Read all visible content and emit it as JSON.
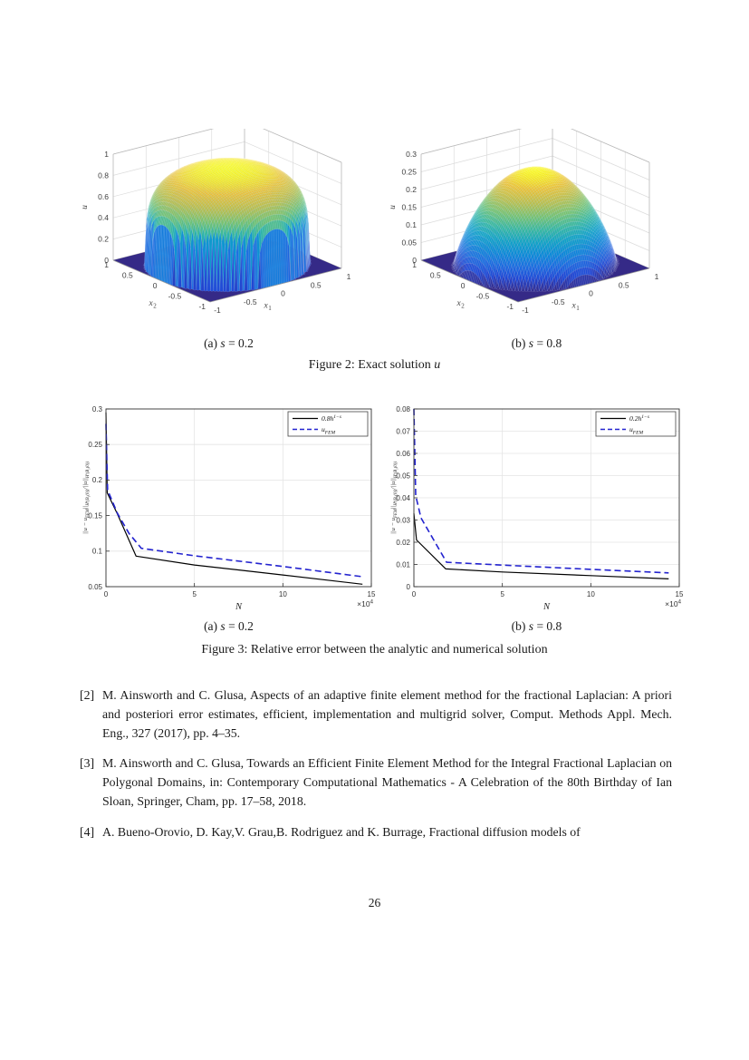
{
  "page": {
    "number": "26"
  },
  "figure2": {
    "caption_prefix": "Figure 2: Exact solution ",
    "caption_math": "u",
    "sub_a": {
      "pre": "(a) ",
      "math": "s",
      "post": " = 0.2"
    },
    "sub_b": {
      "pre": "(b) ",
      "math": "s",
      "post": " = 0.8"
    }
  },
  "figure3": {
    "caption": "Figure 3: Relative error between the analytic and numerical solution",
    "sub_a": {
      "pre": "(a) ",
      "math": "s",
      "post": " = 0.2"
    },
    "sub_b": {
      "pre": "(b) ",
      "math": "s",
      "post": " = 0.8"
    }
  },
  "references": [
    {
      "num": "[2]",
      "text": "M. Ainsworth and C. Glusa, Aspects of an adaptive finite element method for the fractional Laplacian: A priori and posteriori error estimates, efficient, implementation and multigrid solver, Comput. Methods Appl. Mech. Eng., 327 (2017), pp. 4–35."
    },
    {
      "num": "[3]",
      "text": "M. Ainsworth and C. Glusa, Towards an Efficient Finite Element Method for the Integral Fractional Laplacian on Polygonal Domains, in: Contemporary Computational Mathematics - A Celebration of the 80th Birthday of Ian Sloan, Springer, Cham, pp. 17–58, 2018."
    },
    {
      "num": "[4]",
      "text": "A. Bueno-Orovio, D. Kay,V. Grau,B. Rodriguez and K. Burrage, Fractional diffusion models of"
    }
  ],
  "chart_data": [
    {
      "id": "fig2a",
      "type": "surface3d",
      "description": "Exact solution u for s = 0.2: dome u = peak*(1-|x|^2)^s on unit disk, 0 outside",
      "s": 0.2,
      "peak": 0.93,
      "xlabel": "x_{1}",
      "ylabel": "x_{2}",
      "zlabel": "u",
      "xlim": [
        -1,
        1
      ],
      "ylim": [
        -1,
        1
      ],
      "zlim": [
        0,
        1
      ],
      "xticks": [
        -1,
        -0.5,
        0,
        0.5,
        1
      ],
      "yticks": [
        -1,
        -0.5,
        0,
        0.5,
        1
      ],
      "zticks": [
        0,
        0.2,
        0.4,
        0.6,
        0.8,
        1
      ],
      "colormap": "parula",
      "base_color": "#352a87",
      "grid": true
    },
    {
      "id": "fig2b",
      "type": "surface3d",
      "description": "Exact solution u for s = 0.8: smooth dome u = peak*(1-|x|^2)^s on unit disk, 0 outside",
      "s": 0.8,
      "peak": 0.27,
      "xlabel": "x_{1}",
      "ylabel": "x_{2}",
      "zlabel": "u",
      "xlim": [
        -1,
        1
      ],
      "ylim": [
        -1,
        1
      ],
      "zlim": [
        0,
        0.3
      ],
      "xticks": [
        -1,
        -0.5,
        0,
        0.5,
        1
      ],
      "yticks": [
        -1,
        -0.5,
        0,
        0.5,
        1
      ],
      "zticks": [
        0,
        0.05,
        0.1,
        0.15,
        0.2,
        0.25,
        0.3
      ],
      "colormap": "parula",
      "base_color": "#352a87",
      "grid": true
    },
    {
      "id": "fig3a",
      "type": "line",
      "xlabel": "N",
      "x_scale_label": "×10^{4}",
      "ylabel": "||u − u_{FEM}||_{H^s(B_1(0))}/||u||_{H^s(B_1(0))}",
      "xlim": [
        0,
        15
      ],
      "ylim": [
        0.05,
        0.3
      ],
      "xticks": [
        0,
        5,
        10,
        15
      ],
      "yticks": [
        0.05,
        0.1,
        0.15,
        0.2,
        0.25,
        0.3
      ],
      "grid": true,
      "legend_position": "northeast",
      "series": [
        {
          "label": "0.8h^{1−s}",
          "color": "#000000",
          "style": "solid",
          "points": [
            [
              0,
              0.295
            ],
            [
              0.07,
              0.182
            ],
            [
              0.65,
              0.152
            ],
            [
              1.7,
              0.093
            ],
            [
              5,
              0.0805
            ],
            [
              10,
              0.0665
            ],
            [
              14.5,
              0.0535
            ]
          ]
        },
        {
          "label": "u_{FEM}",
          "color": "#2323cf",
          "style": "dashed",
          "points": [
            [
              0,
              0.279
            ],
            [
              0.09,
              0.186
            ],
            [
              0.65,
              0.153
            ],
            [
              1.3,
              0.125
            ],
            [
              2,
              0.104
            ],
            [
              5,
              0.0935
            ],
            [
              10,
              0.0785
            ],
            [
              14.5,
              0.064
            ]
          ]
        }
      ]
    },
    {
      "id": "fig3b",
      "type": "line",
      "xlabel": "N",
      "x_scale_label": "×10^{4}",
      "ylabel": "||u − u_{FEM}||_{H^s(B_1(0))}/||u||_{H^s(B_1(0))}",
      "xlim": [
        0,
        15
      ],
      "ylim": [
        0,
        0.08
      ],
      "xticks": [
        0,
        5,
        10,
        15
      ],
      "yticks": [
        0,
        0.01,
        0.02,
        0.03,
        0.04,
        0.05,
        0.06,
        0.07,
        0.08
      ],
      "grid": true,
      "legend_position": "northeast",
      "series": [
        {
          "label": "0.2h^{1−s}",
          "color": "#000000",
          "style": "solid",
          "points": [
            [
              0,
              0.033
            ],
            [
              0.15,
              0.021
            ],
            [
              1.8,
              0.008
            ],
            [
              5,
              0.0066
            ],
            [
              10,
              0.005
            ],
            [
              14.4,
              0.0035
            ]
          ]
        },
        {
          "label": "u_{FEM}",
          "color": "#2323cf",
          "style": "dashed",
          "points": [
            [
              0,
              0.08
            ],
            [
              0.1,
              0.041
            ],
            [
              0.4,
              0.031
            ],
            [
              1.85,
              0.011
            ],
            [
              5,
              0.0097
            ],
            [
              10,
              0.0078
            ],
            [
              14.4,
              0.0062
            ]
          ]
        }
      ]
    }
  ]
}
